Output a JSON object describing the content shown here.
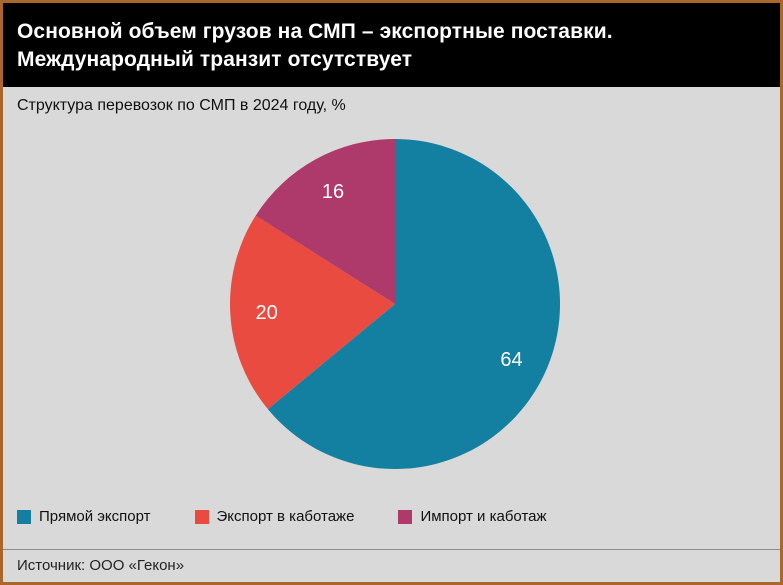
{
  "frame": {
    "border_color": "#a9672c",
    "background": "#d9d9d9"
  },
  "header": {
    "background": "#000000",
    "text_color": "#ffffff",
    "title_line1": "Основной объем грузов на СМП – экспортные поставки.",
    "title_line2": "Международный транзит отсутствует"
  },
  "subtitle": "Структура перевозок по СМП в 2024 году, %",
  "chart_data": {
    "type": "pie",
    "title": "Структура перевозок по СМП в 2024 году, %",
    "unit": "%",
    "start_angle_deg": 0,
    "direction": "clockwise",
    "value_label_color": "#ffffff",
    "legend_position": "bottom",
    "slices": [
      {
        "label": "Прямой экспорт",
        "value": 64,
        "color": "#1380a1"
      },
      {
        "label": "Экспорт в каботаже",
        "value": 20,
        "color": "#ea4b41"
      },
      {
        "label": "Импорт и каботаж",
        "value": 16,
        "color": "#ad3a6b"
      }
    ]
  },
  "footer": {
    "source": "Источник: ООО «Гекон»"
  }
}
